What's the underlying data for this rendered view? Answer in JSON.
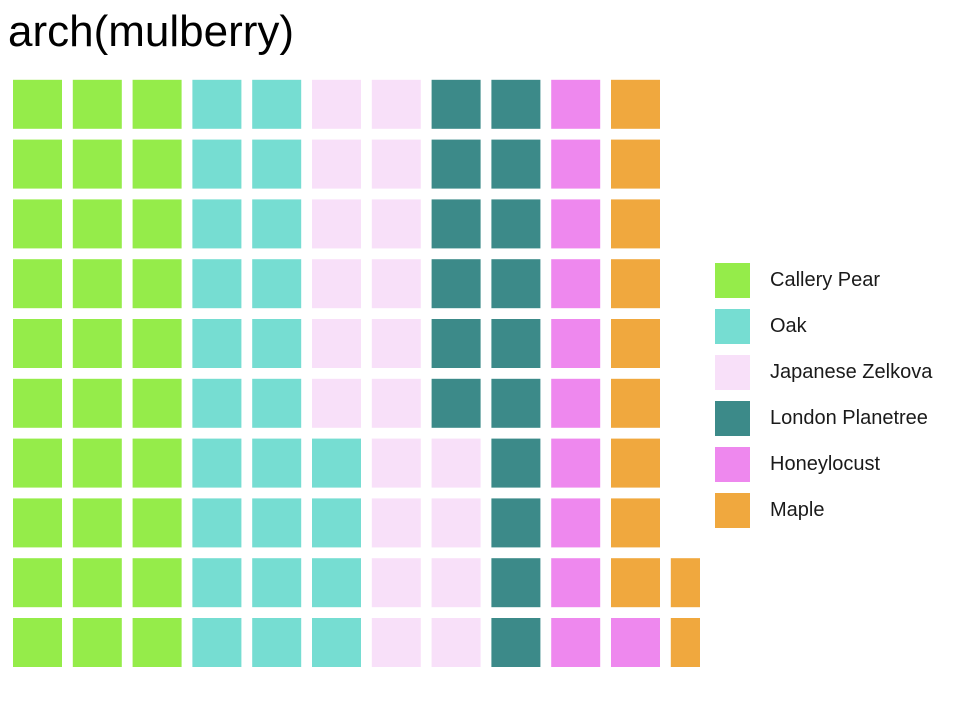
{
  "chart_data": {
    "type": "waffle",
    "title": "arch(mulberry)",
    "legend_position": "right",
    "grid": false,
    "fill_order": "column-major, bottom-to-top, left-to-right",
    "rows": 10,
    "series": [
      {
        "name": "Callery Pear",
        "value": 30,
        "color": "#95EC4A"
      },
      {
        "name": "Oak",
        "value": 24,
        "color": "#76DDD2"
      },
      {
        "name": "Japanese Zelkova",
        "value": 20,
        "color": "#F8E0F9"
      },
      {
        "name": "London Planetree",
        "value": 16,
        "color": "#3C8A89"
      },
      {
        "name": "Honeylocust",
        "value": 11,
        "color": "#EE88EE"
      },
      {
        "name": "Maple",
        "value": 11,
        "color": "#F0A83E"
      }
    ]
  }
}
